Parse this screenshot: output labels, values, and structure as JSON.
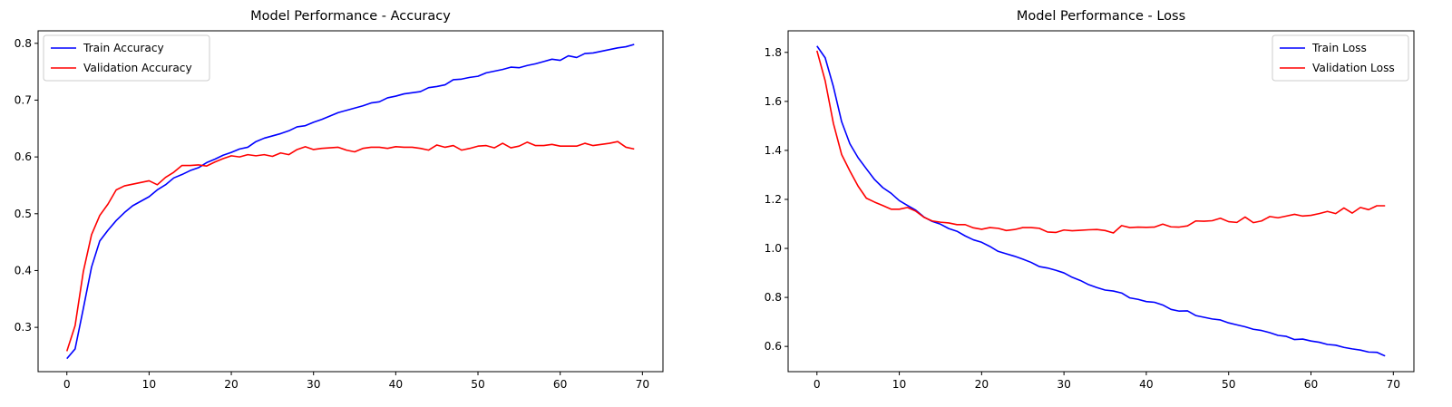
{
  "chart_data": [
    {
      "type": "line",
      "title": "Model Performance - Accuracy",
      "xlabel": "",
      "ylabel": "",
      "xlim": [
        -3.5,
        72.5
      ],
      "ylim": [
        0.222,
        0.822
      ],
      "xticks": [
        0,
        10,
        20,
        30,
        40,
        50,
        60,
        70
      ],
      "yticks": [
        0.3,
        0.4,
        0.5,
        0.6,
        0.7,
        0.8
      ],
      "ytick_format": 1,
      "grid": false,
      "legend_position": "upper-left",
      "x": [
        0,
        1,
        2,
        3,
        4,
        5,
        6,
        7,
        8,
        9,
        10,
        11,
        12,
        13,
        14,
        15,
        16,
        17,
        18,
        19,
        20,
        21,
        22,
        23,
        24,
        25,
        26,
        27,
        28,
        29,
        30,
        31,
        32,
        33,
        34,
        35,
        36,
        37,
        38,
        39,
        40,
        41,
        42,
        43,
        44,
        45,
        46,
        47,
        48,
        49,
        50,
        51,
        52,
        53,
        54,
        55,
        56,
        57,
        58,
        59,
        60,
        61,
        62,
        63,
        64,
        65,
        66,
        67,
        68,
        69
      ],
      "series": [
        {
          "name": "Train Accuracy",
          "color": "#0000ff",
          "values": [
            0.245,
            0.262,
            0.333,
            0.406,
            0.452,
            0.471,
            0.488,
            0.502,
            0.514,
            0.522,
            0.53,
            0.542,
            0.551,
            0.563,
            0.569,
            0.576,
            0.581,
            0.59,
            0.596,
            0.603,
            0.608,
            0.614,
            0.617,
            0.627,
            0.633,
            0.637,
            0.641,
            0.646,
            0.653,
            0.655,
            0.661,
            0.666,
            0.672,
            0.678,
            0.682,
            0.686,
            0.69,
            0.695,
            0.697,
            0.704,
            0.707,
            0.711,
            0.713,
            0.715,
            0.722,
            0.724,
            0.727,
            0.736,
            0.737,
            0.74,
            0.742,
            0.748,
            0.751,
            0.754,
            0.758,
            0.757,
            0.761,
            0.764,
            0.768,
            0.772,
            0.77,
            0.778,
            0.775,
            0.782,
            0.783,
            0.786,
            0.789,
            0.792,
            0.794,
            0.798
          ]
        },
        {
          "name": "Validation Accuracy",
          "color": "#ff0000",
          "values": [
            0.258,
            0.303,
            0.398,
            0.463,
            0.497,
            0.517,
            0.542,
            0.549,
            0.552,
            0.555,
            0.558,
            0.551,
            0.564,
            0.573,
            0.585,
            0.585,
            0.586,
            0.584,
            0.591,
            0.597,
            0.602,
            0.6,
            0.604,
            0.602,
            0.604,
            0.601,
            0.607,
            0.604,
            0.613,
            0.618,
            0.613,
            0.615,
            0.616,
            0.617,
            0.612,
            0.609,
            0.615,
            0.617,
            0.617,
            0.615,
            0.618,
            0.617,
            0.617,
            0.615,
            0.612,
            0.621,
            0.617,
            0.62,
            0.612,
            0.615,
            0.619,
            0.62,
            0.616,
            0.624,
            0.616,
            0.619,
            0.626,
            0.62,
            0.62,
            0.622,
            0.619,
            0.619,
            0.619,
            0.624,
            0.62,
            0.622,
            0.624,
            0.627,
            0.617,
            0.614
          ]
        }
      ]
    },
    {
      "type": "line",
      "title": "Model Performance - Loss",
      "xlabel": "",
      "ylabel": "",
      "xlim": [
        -3.5,
        72.5
      ],
      "ylim": [
        0.497,
        1.888
      ],
      "xticks": [
        0,
        10,
        20,
        30,
        40,
        50,
        60,
        70
      ],
      "yticks": [
        0.6,
        0.8,
        1.0,
        1.2,
        1.4,
        1.6,
        1.8
      ],
      "ytick_format": 1,
      "grid": false,
      "legend_position": "upper-right",
      "x": [
        0,
        1,
        2,
        3,
        4,
        5,
        6,
        7,
        8,
        9,
        10,
        11,
        12,
        13,
        14,
        15,
        16,
        17,
        18,
        19,
        20,
        21,
        22,
        23,
        24,
        25,
        26,
        27,
        28,
        29,
        30,
        31,
        32,
        33,
        34,
        35,
        36,
        37,
        38,
        39,
        40,
        41,
        42,
        43,
        44,
        45,
        46,
        47,
        48,
        49,
        50,
        51,
        52,
        53,
        54,
        55,
        56,
        57,
        58,
        59,
        60,
        61,
        62,
        63,
        64,
        65,
        66,
        67,
        68,
        69
      ],
      "series": [
        {
          "name": "Train Loss",
          "color": "#0000ff",
          "values": [
            1.826,
            1.778,
            1.66,
            1.517,
            1.427,
            1.37,
            1.325,
            1.281,
            1.248,
            1.225,
            1.195,
            1.175,
            1.156,
            1.128,
            1.11,
            1.099,
            1.081,
            1.07,
            1.051,
            1.035,
            1.025,
            1.008,
            0.988,
            0.978,
            0.968,
            0.956,
            0.943,
            0.926,
            0.92,
            0.911,
            0.9,
            0.882,
            0.869,
            0.852,
            0.84,
            0.83,
            0.826,
            0.818,
            0.798,
            0.792,
            0.783,
            0.78,
            0.769,
            0.751,
            0.744,
            0.745,
            0.726,
            0.719,
            0.712,
            0.708,
            0.696,
            0.688,
            0.68,
            0.67,
            0.665,
            0.656,
            0.645,
            0.641,
            0.628,
            0.63,
            0.622,
            0.617,
            0.608,
            0.605,
            0.596,
            0.59,
            0.585,
            0.577,
            0.576,
            0.561
          ]
        },
        {
          "name": "Validation Loss",
          "color": "#ff0000",
          "values": [
            1.807,
            1.684,
            1.51,
            1.383,
            1.316,
            1.254,
            1.205,
            1.189,
            1.175,
            1.16,
            1.16,
            1.167,
            1.152,
            1.127,
            1.112,
            1.107,
            1.104,
            1.097,
            1.097,
            1.084,
            1.078,
            1.085,
            1.082,
            1.073,
            1.077,
            1.085,
            1.085,
            1.082,
            1.067,
            1.065,
            1.075,
            1.072,
            1.074,
            1.076,
            1.077,
            1.073,
            1.063,
            1.093,
            1.085,
            1.087,
            1.086,
            1.087,
            1.099,
            1.088,
            1.087,
            1.092,
            1.112,
            1.111,
            1.113,
            1.123,
            1.109,
            1.106,
            1.128,
            1.105,
            1.112,
            1.13,
            1.125,
            1.132,
            1.139,
            1.132,
            1.135,
            1.142,
            1.151,
            1.142,
            1.165,
            1.144,
            1.167,
            1.158,
            1.174,
            1.174
          ]
        }
      ]
    }
  ]
}
